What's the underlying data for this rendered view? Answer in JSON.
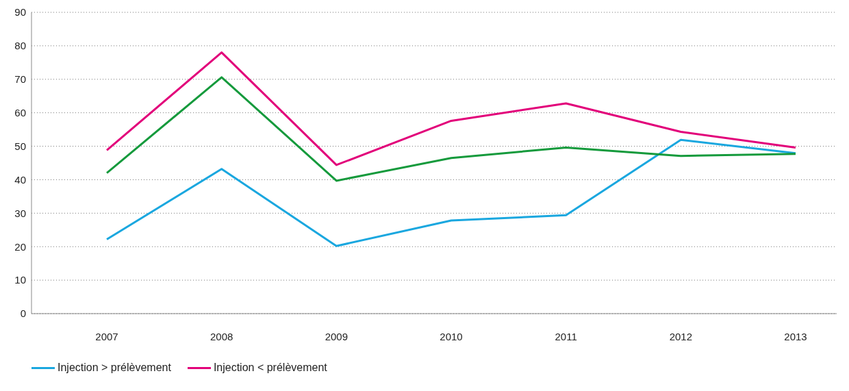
{
  "chart_data": {
    "type": "line",
    "categories": [
      "2007",
      "2008",
      "2009",
      "2010",
      "2011",
      "2012",
      "2013"
    ],
    "series": [
      {
        "name": "Injection > prélèvement",
        "color": "#1aa7df",
        "values": [
          22.2,
          43.2,
          20.2,
          27.8,
          29.4,
          51.9,
          47.9
        ]
      },
      {
        "name": "Injection < prélèvement",
        "color": "#e2007a",
        "values": [
          48.8,
          78,
          44.4,
          57.6,
          62.8,
          54.3,
          49.6
        ]
      },
      {
        "color": "#159a3c",
        "values": [
          42,
          70.6,
          39.7,
          46.5,
          49.6,
          47.1,
          47.7
        ]
      }
    ],
    "ylim": [
      0,
      90
    ],
    "yticks": [
      0,
      10,
      20,
      30,
      40,
      50,
      60,
      70,
      80,
      90
    ],
    "grid": "y",
    "legend": "bottom left",
    "marker": "none",
    "line_style": "solid"
  }
}
